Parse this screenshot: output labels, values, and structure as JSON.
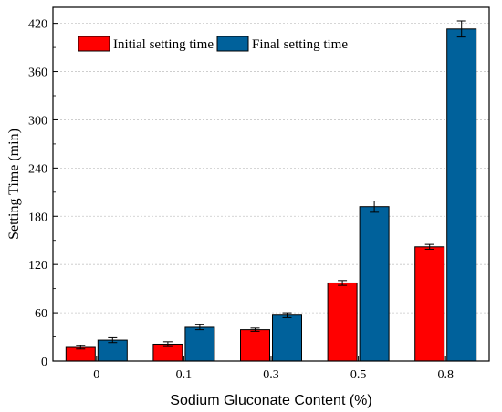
{
  "chart_data": {
    "type": "bar",
    "title": "",
    "xlabel": "Sodium Gluconate Content (%)",
    "ylabel": "Setting Time (min)",
    "ylim": [
      0,
      440
    ],
    "yticks": [
      0,
      60,
      120,
      180,
      240,
      300,
      360,
      420
    ],
    "categories": [
      "0",
      "0.1",
      "0.3",
      "0.5",
      "0.8"
    ],
    "grid": true,
    "legend_position": "top-left",
    "series": [
      {
        "name": "Initial setting time",
        "color": "#ff0000",
        "values": [
          17,
          21,
          39,
          97,
          142
        ],
        "errors": [
          2,
          3,
          2,
          3,
          3
        ]
      },
      {
        "name": "Final setting time",
        "color": "#00619b",
        "values": [
          26,
          42,
          57,
          192,
          413
        ],
        "errors": [
          3,
          3,
          3,
          7,
          10
        ]
      }
    ]
  }
}
